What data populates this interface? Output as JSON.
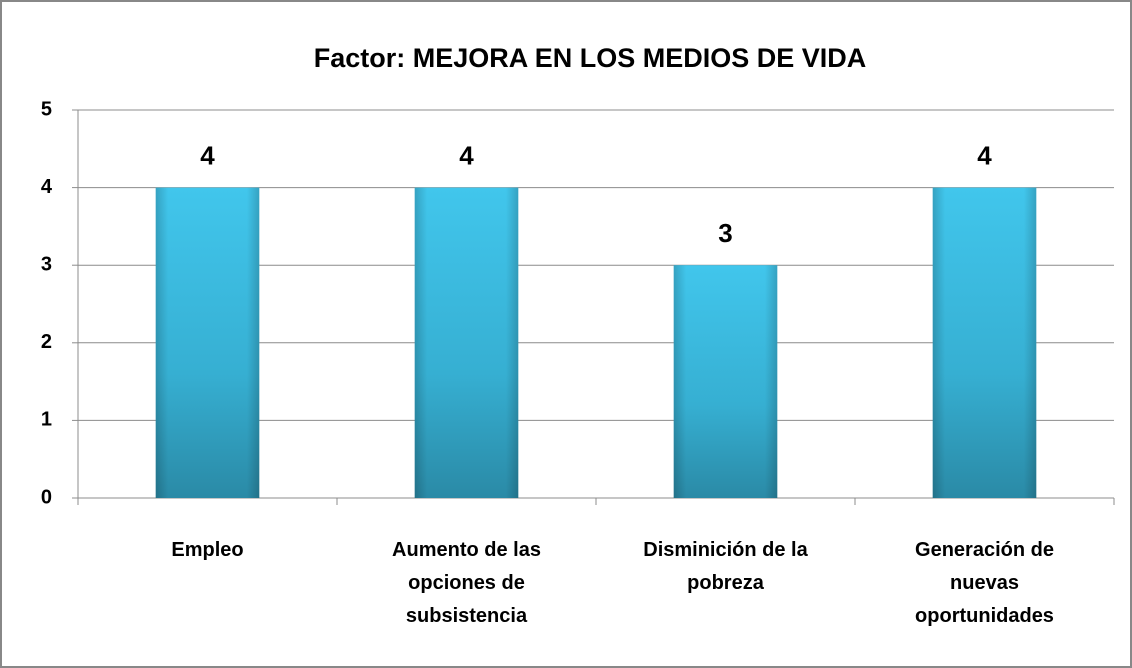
{
  "chart_data": {
    "type": "bar",
    "title": "Factor: MEJORA EN LOS MEDIOS DE VIDA",
    "categories": [
      "Empleo",
      "Aumento de las opciones de subsistencia",
      "Disminición de la pobreza",
      "Generación de nuevas oportunidades"
    ],
    "values": [
      4,
      4,
      3,
      4
    ],
    "color": "#3bbde3",
    "ylim": [
      0,
      5
    ],
    "yticks": [
      0,
      1,
      2,
      3,
      4,
      5
    ],
    "grid": true
  }
}
